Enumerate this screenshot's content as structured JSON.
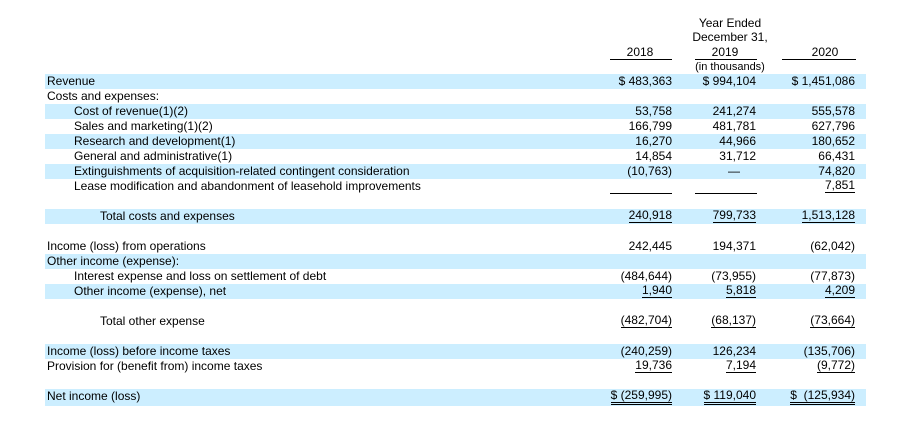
{
  "header": {
    "year_ended": "Year Ended",
    "date": "December 31,",
    "col_2018": "2018",
    "col_2019": "2019",
    "col_2020": "2020",
    "units": "(in thousands)"
  },
  "rows": {
    "revenue": {
      "label": "Revenue",
      "v2018": "$ 483,363",
      "v2019": "$ 994,104",
      "v2020": "$ 1,451,086"
    },
    "costs_header": {
      "label": "Costs and expenses:"
    },
    "cost_of_revenue": {
      "label": "Cost of revenue(1)(2)",
      "v2018": "53,758",
      "v2019": "241,274",
      "v2020": "555,578"
    },
    "sales_marketing": {
      "label": "Sales and marketing(1)(2)",
      "v2018": "166,799",
      "v2019": "481,781",
      "v2020": "627,796"
    },
    "research_dev": {
      "label": "Research and development(1)",
      "v2018": "16,270",
      "v2019": "44,966",
      "v2020": "180,652"
    },
    "general_admin": {
      "label": "General and administrative(1)",
      "v2018": "14,854",
      "v2019": "31,712",
      "v2020": "66,431"
    },
    "extinguishments": {
      "label": "Extinguishments of acquisition-related contingent consideration",
      "v2018": "(10,763)",
      "v2019": "—",
      "v2020": "74,820"
    },
    "lease_mod": {
      "label": "Lease modification and abandonment of leasehold improvements",
      "v2018": "",
      "v2019": "",
      "v2020": "7,851"
    },
    "total_costs": {
      "label": "Total costs and expenses",
      "v2018": "240,918",
      "v2019": "799,733",
      "v2020": "1,513,128"
    },
    "income_ops": {
      "label": "Income (loss) from operations",
      "v2018": "242,445",
      "v2019": "194,371",
      "v2020": "(62,042)"
    },
    "other_header": {
      "label": "Other income (expense):"
    },
    "interest_exp": {
      "label": "Interest expense and loss on settlement of debt",
      "v2018": "(484,644)",
      "v2019": "(73,955)",
      "v2020": "(77,873)"
    },
    "other_income": {
      "label": "Other income (expense), net",
      "v2018": "1,940",
      "v2019": "5,818",
      "v2020": "4,209"
    },
    "total_other": {
      "label": "Total other expense",
      "v2018": "(482,704)",
      "v2019": "(68,137)",
      "v2020": "(73,664)"
    },
    "income_before_tax": {
      "label": "Income (loss) before income taxes",
      "v2018": "(240,259)",
      "v2019": "126,234",
      "v2020": "(135,706)"
    },
    "provision_tax": {
      "label": "Provision for (benefit from) income taxes",
      "v2018": "19,736",
      "v2019": "7,194",
      "v2020": "(9,772)"
    },
    "net_income": {
      "label": "Net income (loss)",
      "v2018": "$ (259,995)",
      "v2019": "$ 119,040",
      "v2020": "$  (125,934)"
    }
  },
  "colors": {
    "row_shade": "#cceeff"
  }
}
